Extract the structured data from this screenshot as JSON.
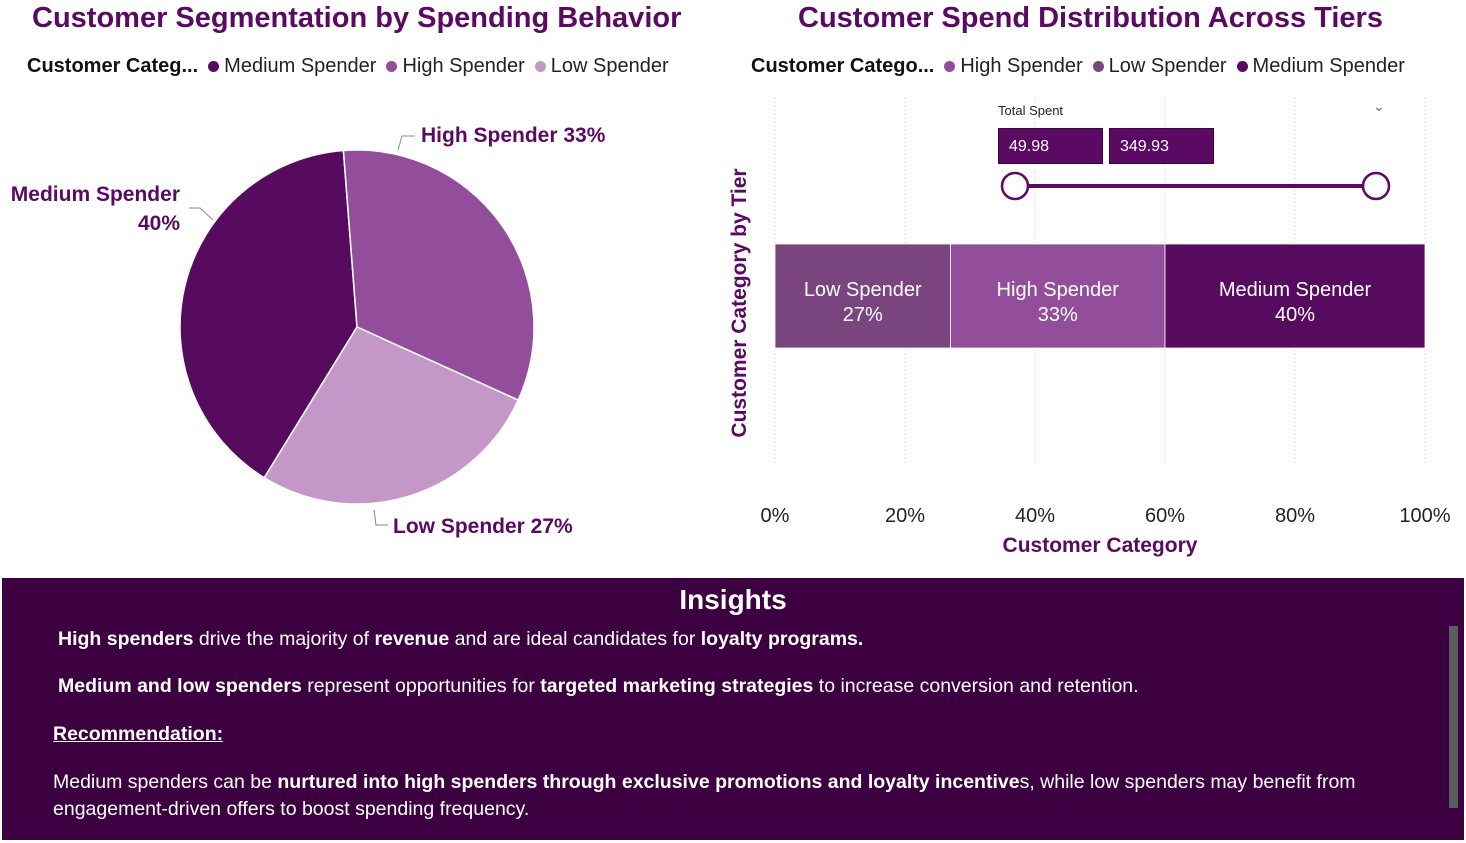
{
  "colors": {
    "medium": "#560b5e",
    "high": "#934e9b",
    "low": "#c497c8",
    "low_bar": "#7a447f",
    "title": "#5a0a62",
    "insights_bg": "#3c0040"
  },
  "pie_chart": {
    "title": "Customer Segmentation by Spending Behavior",
    "legend_title": "Customer Categ...",
    "legend": [
      "Medium Spender",
      "High Spender",
      "Low Spender"
    ],
    "labels": {
      "high": "High Spender 33%",
      "medium_line1": "Medium Spender",
      "medium_line2": "40%",
      "low": "Low Spender 27%"
    }
  },
  "bar_chart": {
    "title": "Customer Spend Distribution Across Tiers",
    "legend_title": "Customer Catego...",
    "legend": [
      "High Spender",
      "Low Spender",
      "Medium Spender"
    ],
    "ylabel": "Customer Category by Tier",
    "xlabel": "Customer Category",
    "ticks": [
      "0%",
      "20%",
      "40%",
      "60%",
      "80%",
      "100%"
    ],
    "segments": [
      {
        "name": "Low Spender",
        "pct": "27%"
      },
      {
        "name": "High Spender",
        "pct": "33%"
      },
      {
        "name": "Medium Spender",
        "pct": "40%"
      }
    ]
  },
  "slicer": {
    "title": "Total Spent",
    "min": "49.98",
    "max": "349.93",
    "chevron": "⌄"
  },
  "insights": {
    "title": "Insights",
    "line1": {
      "b1": "High spenders",
      "t1": " drive the majority of ",
      "b2": "revenue",
      "t2": " and are ideal candidates for ",
      "b3": "loyalty programs."
    },
    "line2": {
      "b1": "Medium and low spenders",
      "t1": " represent opportunities for ",
      "b2": "targeted marketing strategies",
      "t2": " to increase conversion and retention."
    },
    "recommendation": "Recommendation:",
    "line3": {
      "t1": "Medium spenders can be ",
      "b1": "nurtured into high spenders through exclusive promotions and loyalty incentive",
      "t2": "s, while low spenders may benefit from engagement-driven offers to boost spending frequency."
    }
  },
  "chart_data": [
    {
      "type": "pie",
      "title": "Customer Segmentation by Spending Behavior",
      "legend_title": "Customer Categ...",
      "categories": [
        "Medium Spender",
        "High Spender",
        "Low Spender"
      ],
      "values": [
        40,
        33,
        27
      ],
      "legend_position": "top-left"
    },
    {
      "type": "bar",
      "orientation": "horizontal-100%-stacked",
      "title": "Customer Spend Distribution Across Tiers",
      "legend_title": "Customer Catego...",
      "xlabel": "Customer Category",
      "ylabel": "Customer Category by Tier",
      "xlim": [
        0,
        100
      ],
      "series": [
        {
          "name": "Low Spender",
          "values": [
            27
          ]
        },
        {
          "name": "High Spender",
          "values": [
            33
          ]
        },
        {
          "name": "Medium Spender",
          "values": [
            40
          ]
        }
      ],
      "grid": true,
      "legend_position": "top-left"
    }
  ]
}
